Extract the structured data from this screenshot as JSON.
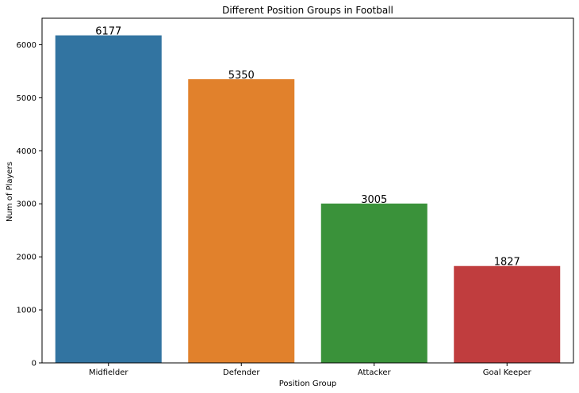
{
  "chart_data": {
    "type": "bar",
    "title": "Different Position Groups in Football",
    "xlabel": "Position Group",
    "ylabel": "Num of Players",
    "categories": [
      "Midfielder",
      "Defender",
      "Attacker",
      "Goal Keeper"
    ],
    "values": [
      6177,
      5350,
      3005,
      1827
    ],
    "data_labels": [
      "6177",
      "5350",
      "3005",
      "1827"
    ],
    "colors": [
      "#3274a1",
      "#e1812c",
      "#3a923a",
      "#c03d3e"
    ],
    "ylim": [
      0,
      6500
    ],
    "yticks": [
      0,
      1000,
      2000,
      3000,
      4000,
      5000,
      6000
    ],
    "grid": false,
    "legend": "none"
  }
}
